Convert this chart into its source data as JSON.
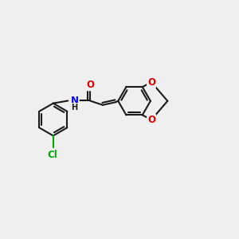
{
  "bg_color": "#efefef",
  "bond_color": "#1a1a1a",
  "bond_width": 1.5,
  "dbo": 0.055,
  "atom_colors": {
    "O": "#e00000",
    "N": "#0000ff",
    "Cl": "#00aa00"
  },
  "figsize": [
    3.0,
    3.0
  ],
  "dpi": 100,
  "xlim": [
    0,
    10
  ],
  "ylim": [
    2,
    8
  ]
}
